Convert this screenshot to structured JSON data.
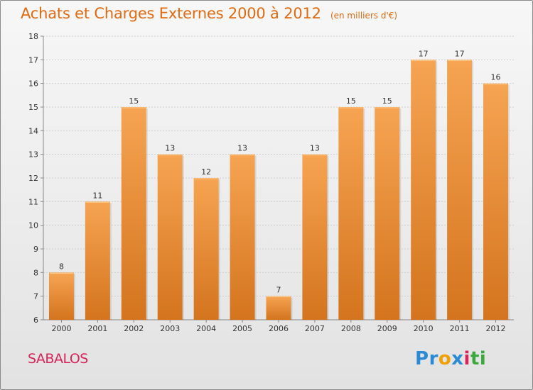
{
  "title": "Achats et Charges Externes 2000 à 2012",
  "unit": "(en milliers d'€)",
  "commune": "SABALOS",
  "logo_text": "Proxiti",
  "colors": {
    "title": "#e06a10",
    "bar_top": "#f6a452",
    "bar_bottom": "#d4741e",
    "commune": "#d8245a"
  },
  "chart_data": {
    "type": "bar",
    "categories": [
      "2000",
      "2001",
      "2002",
      "2003",
      "2004",
      "2005",
      "2006",
      "2007",
      "2008",
      "2009",
      "2010",
      "2011",
      "2012"
    ],
    "values": [
      8,
      11,
      15,
      13,
      12,
      13,
      7,
      13,
      15,
      15,
      17,
      17,
      16
    ],
    "ylim": [
      6,
      18
    ],
    "yticks": [
      6,
      7,
      8,
      9,
      10,
      11,
      12,
      13,
      14,
      15,
      16,
      17,
      18
    ],
    "grid": true,
    "title": "Achats et Charges Externes 2000 à 2012",
    "xlabel": "",
    "ylabel": ""
  }
}
